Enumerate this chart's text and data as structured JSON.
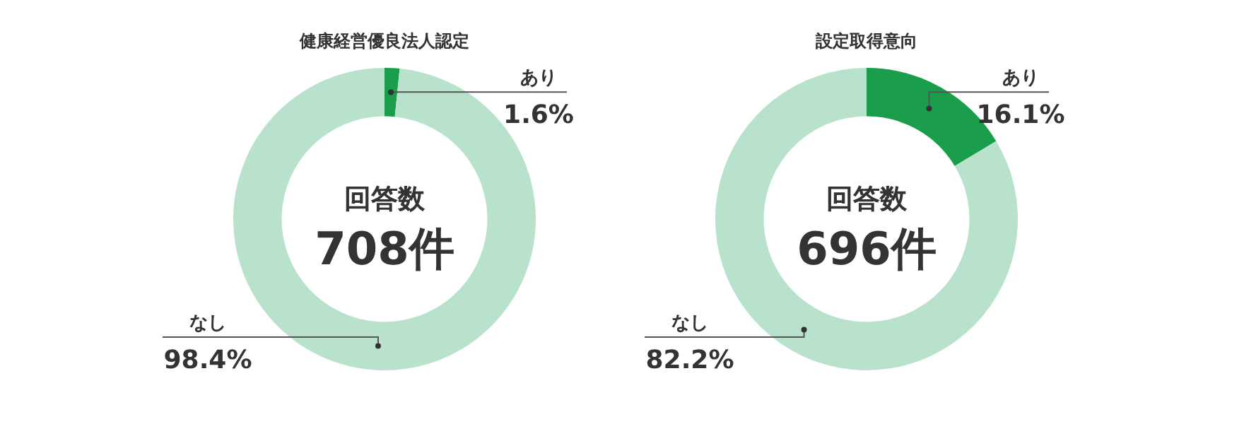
{
  "chart_data": [
    {
      "type": "donut",
      "title": "健康経営優良法人認定",
      "categories": [
        "あり",
        "なし"
      ],
      "values": [
        1.6,
        98.4
      ],
      "colors": [
        "#1a9e4b",
        "#b8e2cc"
      ],
      "value_labels": [
        "1.6%",
        "98.4%"
      ],
      "annotations": [
        "回答数",
        "708件"
      ]
    },
    {
      "type": "donut",
      "title": "設定取得意向",
      "categories": [
        "あり",
        "なし"
      ],
      "values": [
        16.1,
        82.2
      ],
      "colors": [
        "#1a9e4b",
        "#b8e2cc"
      ],
      "value_labels": [
        "16.1%",
        "82.2%"
      ],
      "annotations": [
        "回答数",
        "696件"
      ]
    }
  ]
}
